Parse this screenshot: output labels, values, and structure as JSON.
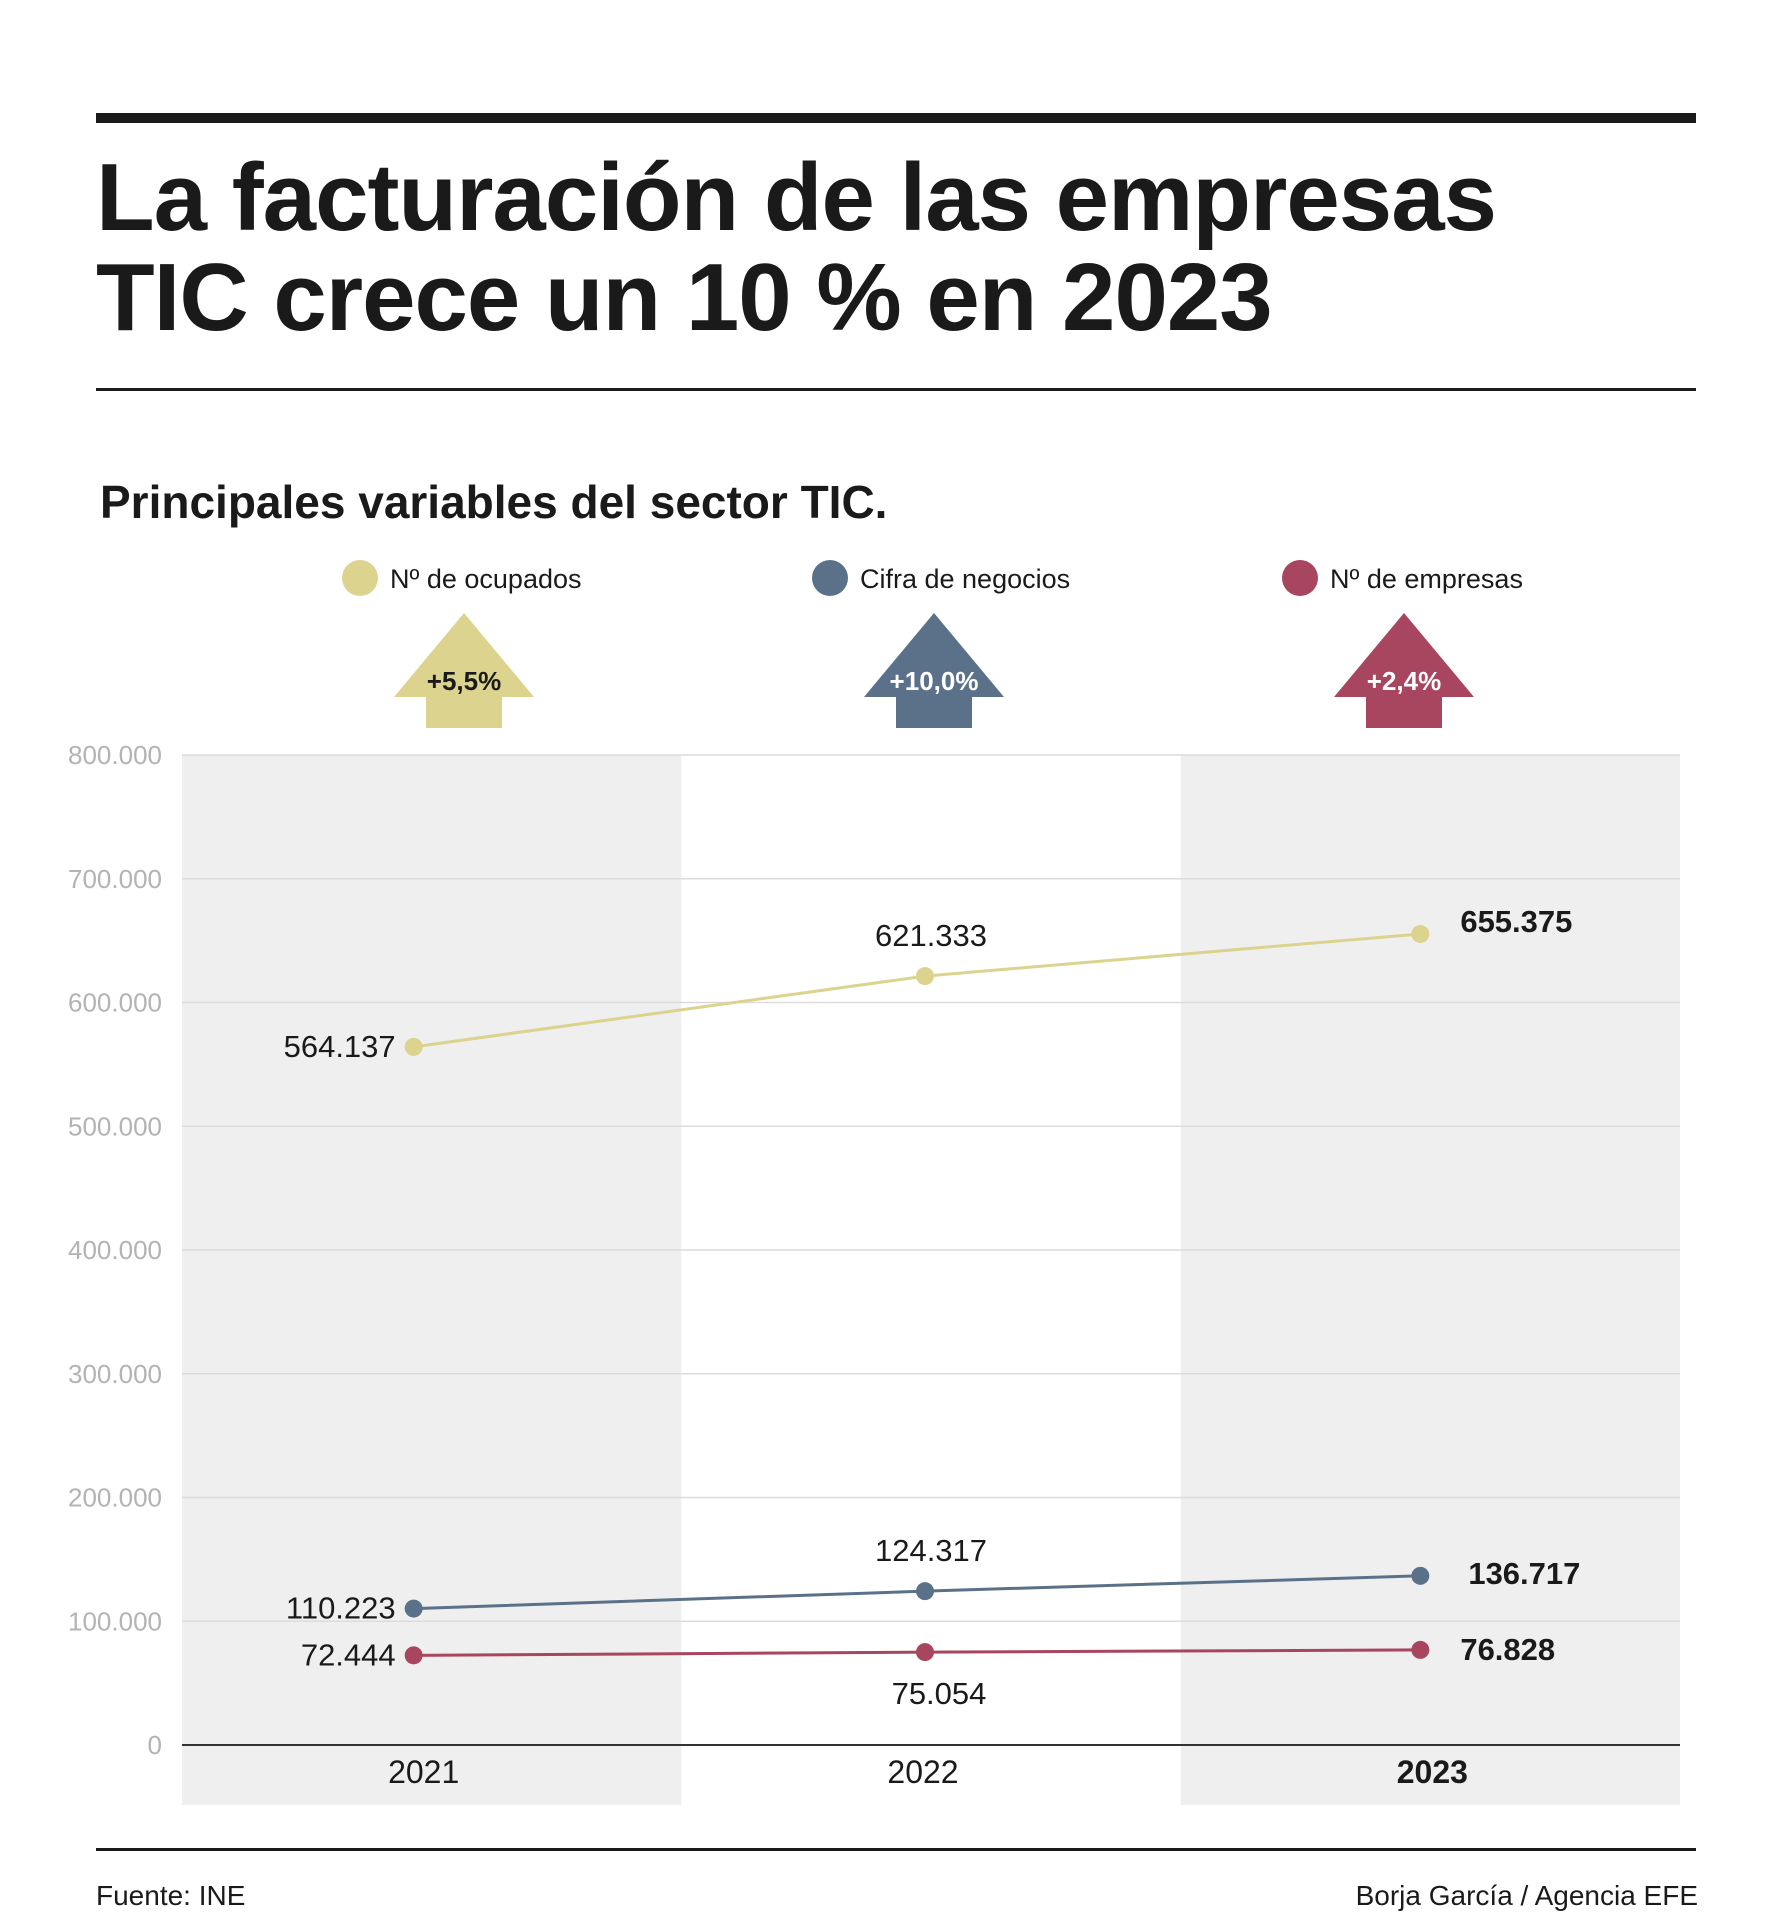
{
  "title_lines": [
    "La facturación de las empresas",
    "TIC crece un 10 % en 2023"
  ],
  "subtitle": "Principales variables del sector TIC.",
  "footer": {
    "source": "Fuente: INE",
    "credit": "Borja García / Agencia EFE"
  },
  "chart_data": {
    "type": "line",
    "title": "Principales variables del sector TIC.",
    "categories": [
      "2021",
      "2022",
      "2023"
    ],
    "highlight_category": "2023",
    "ylim": [
      0,
      800000
    ],
    "yticks": [
      0,
      100000,
      200000,
      300000,
      400000,
      500000,
      600000,
      700000,
      800000
    ],
    "ytick_labels": [
      "0",
      "100.000",
      "200.000",
      "300.000",
      "400.000",
      "500.000",
      "600.000",
      "700.000",
      "800.000"
    ],
    "grid": true,
    "legend_position": "top",
    "series": [
      {
        "name": "Nº de ocupados",
        "color": "#dcd38e",
        "values": [
          564137,
          621333,
          655375
        ],
        "value_labels": [
          "564.137",
          "621.333",
          "655.375"
        ],
        "change_label": "+5,5%",
        "change_label_color": "#1a1a1a"
      },
      {
        "name": "Cifra de negocios",
        "color": "#5a7189",
        "values": [
          110223,
          124317,
          136717
        ],
        "value_labels": [
          "110.223",
          "124.317",
          "136.717"
        ],
        "change_label": "+10,0%",
        "change_label_color": "#ffffff"
      },
      {
        "name": "Nº de empresas",
        "color": "#a8455f",
        "values": [
          72444,
          75054,
          76828
        ],
        "value_labels": [
          "72.444",
          "75.054",
          "76.828"
        ],
        "change_label": "+2,4%",
        "change_label_color": "#ffffff"
      }
    ]
  }
}
